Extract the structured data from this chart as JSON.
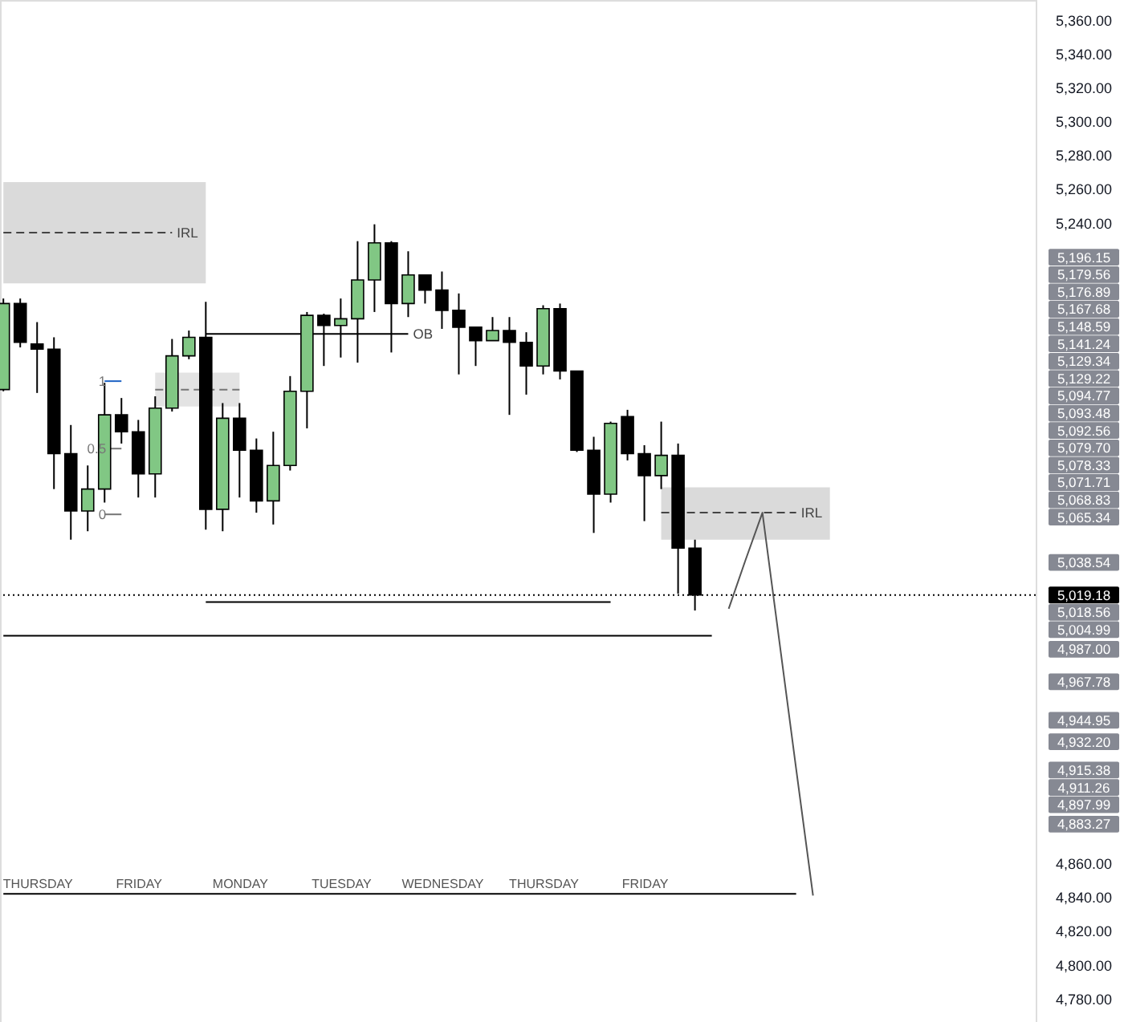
{
  "chart_data": {
    "type": "candlestick",
    "categories": [
      null,
      null,
      "THURSDAY",
      null,
      null,
      null,
      null,
      null,
      "FRIDAY",
      null,
      null,
      null,
      null,
      null,
      "MONDAY",
      null,
      null,
      null,
      null,
      null,
      "TUESDAY",
      null,
      null,
      null,
      null,
      null,
      "WEDNESDAY",
      null,
      null,
      null,
      null,
      null,
      "THURSDAY",
      null,
      null,
      null,
      null,
      null,
      "FRIDAY",
      null,
      null,
      null,
      null,
      null,
      null,
      null,
      null,
      null,
      null,
      null,
      null,
      null,
      null,
      null,
      null,
      null,
      null,
      null,
      null,
      null,
      null,
      null
    ],
    "ohlc": [
      [
        5141,
        5195,
        5140,
        5192
      ],
      [
        5192,
        5195,
        5166,
        5169
      ],
      [
        5168,
        5181,
        5139,
        5165
      ],
      [
        5165,
        5172,
        5082,
        5103
      ],
      [
        5103,
        5120,
        5052,
        5069
      ],
      [
        5069,
        5096,
        5057,
        5082
      ],
      [
        5082,
        5145,
        5074,
        5126
      ],
      [
        5126,
        5136,
        5109,
        5116
      ],
      [
        5116,
        5123,
        5077,
        5091
      ],
      [
        5091,
        5137,
        5077,
        5130
      ],
      [
        5130,
        5171,
        5128,
        5161
      ],
      [
        5161,
        5176,
        5159,
        5172
      ],
      [
        5172,
        5193,
        5058,
        5070
      ],
      [
        5070,
        5133,
        5057,
        5124
      ],
      [
        5124,
        5133,
        5077,
        5105
      ],
      [
        5105,
        5112,
        5068,
        5075
      ],
      [
        5075,
        5116,
        5061,
        5096
      ],
      [
        5096,
        5149,
        5093,
        5140
      ],
      [
        5140,
        5187,
        5118,
        5185
      ],
      [
        5185,
        5186,
        5155,
        5179
      ],
      [
        5179,
        5195,
        5160,
        5183
      ],
      [
        5183,
        5229,
        5157,
        5206
      ],
      [
        5206,
        5239,
        5187,
        5228
      ],
      [
        5228,
        5229,
        5163,
        5192
      ],
      [
        5192,
        5223,
        5184,
        5209
      ],
      [
        5209,
        5209,
        5192,
        5200
      ],
      [
        5200,
        5211,
        5177,
        5188
      ],
      [
        5188,
        5198,
        5150,
        5178
      ],
      [
        5178,
        5178,
        5155,
        5170
      ],
      [
        5170,
        5184,
        5170,
        5176
      ],
      [
        5176,
        5184,
        5126,
        5169
      ],
      [
        5169,
        5175,
        5138,
        5155
      ],
      [
        5155,
        5191,
        5150,
        5189
      ],
      [
        5189,
        5192,
        5147,
        5152
      ],
      [
        5152,
        5152,
        5104,
        5105
      ],
      [
        5105,
        5113,
        5056,
        5079
      ],
      [
        5079,
        5122,
        5074,
        5121
      ],
      [
        5125,
        5129,
        5099,
        5103
      ],
      [
        5103,
        5108,
        5063,
        5090
      ],
      [
        5090,
        5122,
        5082,
        5102
      ],
      [
        5102,
        5109,
        5020,
        5047
      ],
      [
        5047,
        5052,
        5010,
        5019.18
      ],
      null,
      null,
      null,
      null,
      null,
      null,
      null,
      null,
      null,
      null,
      null,
      null,
      null,
      null,
      null,
      null,
      null,
      null,
      null,
      null
    ],
    "colors": [
      "#81c784",
      "#000000",
      "#000000",
      "#000000",
      "#000000",
      "#81c784",
      "#81c784",
      "#000000",
      "#000000",
      "#81c784",
      "#81c784",
      "#81c784",
      "#000000",
      "#81c784",
      "#000000",
      "#000000",
      "#81c784",
      "#81c784",
      "#81c784",
      "#000000",
      "#81c784",
      "#81c784",
      "#81c784",
      "#000000",
      "#81c784",
      "#000000",
      "#000000",
      "#000000",
      "#000000",
      "#81c784",
      "#000000",
      "#000000",
      "#81c784",
      "#000000",
      "#000000",
      "#000000",
      "#81c784",
      "#000000",
      "#000000",
      "#81c784",
      "#000000",
      "#000000",
      null,
      null,
      null,
      null,
      null,
      null,
      null,
      null,
      null,
      null,
      null,
      null,
      null,
      null,
      null,
      null,
      null,
      null,
      null,
      null
    ],
    "ylim": [
      4766,
      5372
    ],
    "yticks": [
      {
        "value": 5360,
        "label": "5,360.00"
      },
      {
        "value": 5340,
        "label": "5,340.00"
      },
      {
        "value": 5320,
        "label": "5,320.00"
      },
      {
        "value": 5300,
        "label": "5,300.00"
      },
      {
        "value": 5280,
        "label": "5,280.00"
      },
      {
        "value": 5260,
        "label": "5,260.00"
      },
      {
        "value": 5240,
        "label": "5,240.00"
      },
      {
        "value": 4860,
        "label": "4,860.00"
      },
      {
        "value": 4840,
        "label": "4,840.00"
      },
      {
        "value": 4820,
        "label": "4,820.00"
      },
      {
        "value": 4800,
        "label": "4,800.00"
      },
      {
        "value": 4780,
        "label": "4,780.00"
      }
    ],
    "series": [
      {
        "name": "IRL",
        "type": "line",
        "color": "#444444",
        "line_style": "dashed",
        "values": [
          5234,
          5234,
          5234,
          5234,
          5234,
          5234,
          5234,
          5234,
          5234,
          5234,
          5234,
          null,
          null,
          null,
          null,
          null,
          null,
          null,
          null,
          null,
          null,
          null,
          null,
          null,
          null,
          null,
          null,
          null,
          null,
          null,
          null,
          null,
          null,
          null,
          null,
          null,
          null,
          null,
          null,
          null,
          null,
          null,
          null,
          null,
          null,
          null,
          null,
          null,
          null,
          null,
          null,
          null,
          null,
          null,
          null,
          null,
          null,
          null,
          null,
          null,
          null,
          null
        ],
        "lower": [
          5204,
          5204,
          5204,
          5204,
          5204,
          5204,
          5204,
          5204,
          5204,
          5204,
          5204,
          5204,
          5204,
          null,
          null,
          null,
          null,
          null,
          null,
          null,
          null,
          null,
          null,
          null,
          null,
          null,
          null,
          null,
          null,
          null,
          null,
          null,
          null,
          null,
          null,
          null,
          null,
          null,
          null,
          null,
          null,
          null,
          null,
          null,
          null,
          null,
          null,
          null,
          null,
          null,
          null,
          null,
          null,
          null,
          null,
          null,
          null,
          null,
          null,
          null,
          null,
          null
        ],
        "upper": [
          5264,
          5264,
          5264,
          5264,
          5264,
          5264,
          5264,
          5264,
          5264,
          5264,
          5264,
          5264,
          5264,
          null,
          null,
          null,
          null,
          null,
          null,
          null,
          null,
          null,
          null,
          null,
          null,
          null,
          null,
          null,
          null,
          null,
          null,
          null,
          null,
          null,
          null,
          null,
          null,
          null,
          null,
          null,
          null,
          null,
          null,
          null,
          null,
          null,
          null,
          null,
          null,
          null,
          null,
          null,
          null,
          null,
          null,
          null,
          null,
          null,
          null,
          null,
          null,
          null
        ]
      },
      {
        "name": "IRL",
        "type": "line",
        "color": "#444444",
        "line_style": "dashed",
        "values": [
          null,
          null,
          null,
          null,
          null,
          null,
          null,
          null,
          null,
          null,
          null,
          null,
          null,
          null,
          null,
          null,
          null,
          null,
          null,
          null,
          null,
          null,
          null,
          null,
          null,
          null,
          null,
          null,
          null,
          null,
          null,
          null,
          null,
          null,
          null,
          null,
          null,
          null,
          null,
          5068,
          5068,
          5068,
          5068,
          5068,
          5068,
          5068,
          5068,
          5068,
          null,
          null,
          null,
          null,
          null,
          null,
          null,
          null,
          null,
          null,
          null,
          null,
          null,
          null
        ],
        "lower": [
          null,
          null,
          null,
          null,
          null,
          null,
          null,
          null,
          null,
          null,
          null,
          null,
          null,
          null,
          null,
          null,
          null,
          null,
          null,
          null,
          null,
          null,
          null,
          null,
          null,
          null,
          null,
          null,
          null,
          null,
          null,
          null,
          null,
          null,
          null,
          null,
          null,
          null,
          null,
          5052,
          5052,
          5052,
          5052,
          5052,
          5052,
          5052,
          5052,
          5052,
          5052,
          5052,
          null,
          null,
          null,
          null,
          null,
          null,
          null,
          null,
          null,
          null,
          null,
          null
        ],
        "upper": [
          null,
          null,
          null,
          null,
          null,
          null,
          null,
          null,
          null,
          null,
          null,
          null,
          null,
          null,
          null,
          null,
          null,
          null,
          null,
          null,
          null,
          null,
          null,
          null,
          null,
          null,
          null,
          null,
          null,
          null,
          null,
          null,
          null,
          null,
          null,
          null,
          null,
          null,
          null,
          5083,
          5083,
          5083,
          5083,
          5083,
          5083,
          5083,
          5083,
          5083,
          5083,
          5083,
          null,
          null,
          null,
          null,
          null,
          null,
          null,
          null,
          null,
          null,
          null,
          null
        ]
      },
      {
        "name": "OB",
        "type": "line",
        "color": "#000000",
        "values": [
          null,
          null,
          null,
          null,
          null,
          null,
          null,
          null,
          null,
          null,
          null,
          null,
          5174,
          5174,
          5174,
          5174,
          5174,
          5174,
          5174,
          5174,
          5174,
          5174,
          5174,
          5174,
          5174,
          null,
          null,
          null,
          null,
          null,
          null,
          null,
          null,
          null,
          null,
          null,
          null,
          null,
          null,
          null,
          null,
          null,
          null,
          null,
          null,
          null,
          null,
          null,
          null,
          null,
          null,
          null,
          null,
          null,
          null,
          null,
          null,
          null,
          null,
          null,
          null,
          null
        ]
      },
      {
        "type": "line",
        "color": "#000000",
        "values": [
          null,
          null,
          null,
          null,
          null,
          null,
          null,
          null,
          null,
          null,
          null,
          null,
          5015,
          5015,
          5015,
          5015,
          5015,
          5015,
          5015,
          5015,
          5015,
          5015,
          5015,
          5015,
          5015,
          5015,
          5015,
          5015,
          5015,
          5015,
          5015,
          5015,
          5015,
          5015,
          5015,
          5015,
          5015,
          null,
          null,
          null,
          null,
          null,
          null,
          null,
          null,
          null,
          null,
          null,
          null,
          null,
          null,
          null,
          null,
          null,
          null,
          null,
          null,
          null,
          null,
          null,
          null,
          null
        ]
      },
      {
        "type": "line",
        "color": "#000000",
        "values": [
          4995,
          4995,
          4995,
          4995,
          4995,
          4995,
          4995,
          4995,
          4995,
          4995,
          4995,
          4995,
          4995,
          4995,
          4995,
          4995,
          4995,
          4995,
          4995,
          4995,
          4995,
          4995,
          4995,
          4995,
          4995,
          4995,
          4995,
          4995,
          4995,
          4995,
          4995,
          4995,
          4995,
          4995,
          4995,
          4995,
          4995,
          4995,
          4995,
          4995,
          4995,
          4995,
          4995,
          null,
          null,
          null,
          null,
          null,
          null,
          null,
          null,
          null,
          null,
          null,
          null,
          null,
          null,
          null,
          null,
          null,
          null,
          null
        ]
      },
      {
        "type": "line",
        "color": "#000000",
        "values": [
          4842,
          4842,
          4842,
          4842,
          4842,
          4842,
          4842,
          4842,
          4842,
          4842,
          4842,
          4842,
          4842,
          4842,
          4842,
          4842,
          4842,
          4842,
          4842,
          4842,
          4842,
          4842,
          4842,
          4842,
          4842,
          4842,
          4842,
          4842,
          4842,
          4842,
          4842,
          4842,
          4842,
          4842,
          4842,
          4842,
          4842,
          4842,
          4842,
          4842,
          4842,
          4842,
          4842,
          4842,
          4842,
          4842,
          4842,
          4842,
          null,
          null,
          null,
          null,
          null,
          null,
          null,
          null,
          null,
          null,
          null,
          null,
          null,
          null
        ]
      },
      {
        "type": "line",
        "color": "#555555",
        "values": [
          null,
          null,
          null,
          null,
          null,
          null,
          null,
          null,
          null,
          null,
          null,
          null,
          null,
          null,
          null,
          null,
          null,
          null,
          null,
          null,
          null,
          null,
          null,
          null,
          null,
          null,
          null,
          null,
          null,
          null,
          null,
          null,
          null,
          null,
          null,
          null,
          null,
          null,
          null,
          null,
          null,
          null,
          null,
          5011,
          5040,
          5068,
          4992,
          4916,
          4841,
          null,
          null,
          null,
          null,
          null,
          null,
          null,
          null,
          null,
          null,
          null,
          null,
          null
        ]
      },
      {
        "type": "line",
        "color": "#1e63c4",
        "values": [
          null,
          null,
          null,
          null,
          null,
          null,
          5146,
          5146,
          null,
          null,
          null,
          null,
          null,
          null,
          null,
          null,
          null,
          null,
          null,
          null,
          null,
          null,
          null,
          null,
          null,
          null,
          null,
          null,
          null,
          null,
          null,
          null,
          null,
          null,
          null,
          null,
          null,
          null,
          null,
          null,
          null,
          null,
          null,
          null,
          null,
          null,
          null,
          null,
          null,
          null,
          null,
          null,
          null,
          null,
          null,
          null,
          null,
          null,
          null,
          null,
          null,
          null
        ]
      },
      {
        "type": "line",
        "color": "#757575",
        "values": [
          null,
          null,
          null,
          null,
          null,
          null,
          5106,
          5106,
          null,
          null,
          null,
          null,
          null,
          null,
          null,
          null,
          null,
          null,
          null,
          null,
          null,
          null,
          null,
          null,
          null,
          null,
          null,
          null,
          null,
          null,
          null,
          null,
          null,
          null,
          null,
          null,
          null,
          null,
          null,
          null,
          null,
          null,
          null,
          null,
          null,
          null,
          null,
          null,
          null,
          null,
          null,
          null,
          null,
          null,
          null,
          null,
          null,
          null,
          null,
          null,
          null,
          null
        ]
      },
      {
        "type": "line",
        "color": "#757575",
        "values": [
          null,
          null,
          null,
          null,
          null,
          null,
          5067,
          5067,
          null,
          null,
          null,
          null,
          null,
          null,
          null,
          null,
          null,
          null,
          null,
          null,
          null,
          null,
          null,
          null,
          null,
          null,
          null,
          null,
          null,
          null,
          null,
          null,
          null,
          null,
          null,
          null,
          null,
          null,
          null,
          null,
          null,
          null,
          null,
          null,
          null,
          null,
          null,
          null,
          null,
          null,
          null,
          null,
          null,
          null,
          null,
          null,
          null,
          null,
          null,
          null,
          null,
          null
        ]
      },
      {
        "type": "line",
        "color": "#757575",
        "line_style": "dashed",
        "values": [
          null,
          null,
          null,
          null,
          null,
          null,
          null,
          null,
          null,
          5141,
          5141,
          5141,
          5141,
          5141,
          5141,
          null,
          null,
          null,
          null,
          null,
          null,
          null,
          null,
          null,
          null,
          null,
          null,
          null,
          null,
          null,
          null,
          null,
          null,
          null,
          null,
          null,
          null,
          null,
          null,
          null,
          null,
          null,
          null,
          null,
          null,
          null,
          null,
          null,
          null,
          null,
          null,
          null,
          null,
          null,
          null,
          null,
          null,
          null,
          null,
          null,
          null,
          null
        ],
        "lower": [
          null,
          null,
          null,
          null,
          null,
          null,
          null,
          null,
          null,
          5131,
          5131,
          5131,
          5131,
          5131,
          5131,
          null,
          null,
          null,
          null,
          null,
          null,
          null,
          null,
          null,
          null,
          null,
          null,
          null,
          null,
          null,
          null,
          null,
          null,
          null,
          null,
          null,
          null,
          null,
          null,
          null,
          null,
          null,
          null,
          null,
          null,
          null,
          null,
          null,
          null,
          null,
          null,
          null,
          null,
          null,
          null,
          null,
          null,
          null,
          null,
          null,
          null,
          null
        ],
        "upper": [
          null,
          null,
          null,
          null,
          null,
          null,
          null,
          null,
          null,
          5151,
          5151,
          5151,
          5151,
          5151,
          5151,
          null,
          null,
          null,
          null,
          null,
          null,
          null,
          null,
          null,
          null,
          null,
          null,
          null,
          null,
          null,
          null,
          null,
          null,
          null,
          null,
          null,
          null,
          null,
          null,
          null,
          null,
          null,
          null,
          null,
          null,
          null,
          null,
          null,
          null,
          null,
          null,
          null,
          null,
          null,
          null,
          null,
          null,
          null,
          null,
          null,
          null,
          null
        ]
      }
    ],
    "ref_lines": [
      {
        "axis": "y",
        "value": 5019.18,
        "label": "5,019.18",
        "color": "#000000",
        "line_style": "dotted"
      }
    ],
    "annotations": [
      {
        "text": "1",
        "y": 5146
      },
      {
        "text": "0.5",
        "y": 5106
      },
      {
        "text": "0",
        "y": 5067
      },
      "5,196.15",
      "5,179.56",
      "5,176.89",
      "5,167.68",
      "5,148.59",
      "5,141.24",
      "5,129.34",
      "5,129.22",
      "5,094.77",
      "5,093.48",
      "5,092.56",
      "5,079.70",
      "5,078.33",
      "5,071.71",
      "5,068.83",
      "5,065.34",
      "5,038.54",
      "5,018.56",
      "5,004.99",
      "4,987.00",
      "4,967.78",
      "4,944.95",
      "4,932.20",
      "4,915.38",
      "4,911.26",
      "4,897.99",
      "4,883.27"
    ]
  }
}
